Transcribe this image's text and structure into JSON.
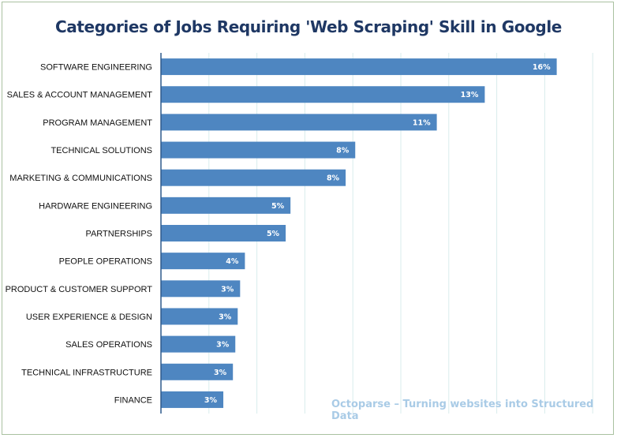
{
  "chart_data": {
    "type": "bar",
    "orientation": "horizontal",
    "title": "Categories of Jobs Requiring 'Web Scraping' Skill in Google",
    "categories": [
      "SOFTWARE ENGINEERING",
      "SALES & ACCOUNT MANAGEMENT",
      "PROGRAM MANAGEMENT",
      "TECHNICAL SOLUTIONS",
      "MARKETING & COMMUNICATIONS",
      "HARDWARE ENGINEERING",
      "PARTNERSHIPS",
      "PEOPLE OPERATIONS",
      "PRODUCT & CUSTOMER SUPPORT",
      "USER EXPERIENCE & DESIGN",
      "SALES OPERATIONS",
      "TECHNICAL INFRASTRUCTURE",
      "FINANCE"
    ],
    "values": [
      16.5,
      13.5,
      11.5,
      8.1,
      7.7,
      5.4,
      5.2,
      3.5,
      3.3,
      3.2,
      3.1,
      3.0,
      2.6
    ],
    "data_labels": [
      "16%",
      "13%",
      "11%",
      "8%",
      "8%",
      "5%",
      "5%",
      "4%",
      "3%",
      "3%",
      "3%",
      "3%",
      "3%"
    ],
    "xlim": [
      0,
      18
    ],
    "grid": true,
    "bar_color": "#4e86c1",
    "grid_color": "#d9ecec"
  },
  "watermark": "Octoparse – Turning websites into Structured Data"
}
